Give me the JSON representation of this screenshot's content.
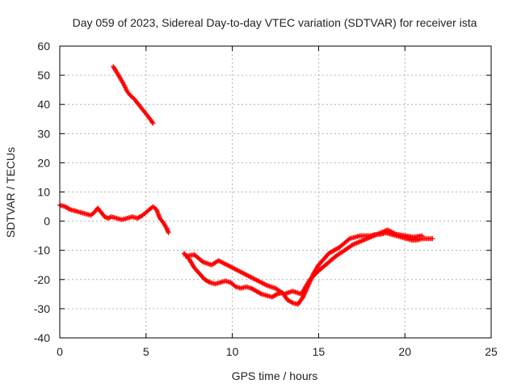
{
  "chart_data": {
    "type": "scatter",
    "title": "Day 059 of 2023, Sidereal Day-to-day VTEC variation (SDTVAR) for receiver ista",
    "xlabel": "GPS time / hours",
    "ylabel": "SDTVAR / TECUs",
    "xlim": [
      0,
      25
    ],
    "ylim": [
      -40,
      60
    ],
    "xticks": [
      0,
      5,
      10,
      15,
      20,
      25
    ],
    "yticks": [
      -40,
      -30,
      -20,
      -10,
      0,
      10,
      20,
      30,
      40,
      50,
      60
    ],
    "grid": true,
    "marker": "+",
    "colors": {
      "series": "#ff0000",
      "grid": "#a0a0a0",
      "axis": "#000000"
    },
    "series": [
      {
        "name": "SDTVAR",
        "segments": [
          {
            "points": [
              [
                0.0,
                5.5
              ],
              [
                0.3,
                5
              ],
              [
                0.6,
                4
              ],
              [
                0.9,
                3.5
              ],
              [
                1.2,
                3
              ],
              [
                1.5,
                2.5
              ],
              [
                1.8,
                2
              ],
              [
                2.0,
                3
              ],
              [
                2.2,
                4.5
              ],
              [
                2.4,
                3
              ],
              [
                2.6,
                1.5
              ],
              [
                2.8,
                1
              ],
              [
                3.0,
                1.5
              ],
              [
                3.3,
                1
              ],
              [
                3.6,
                0.5
              ],
              [
                3.9,
                1
              ],
              [
                4.2,
                1.5
              ],
              [
                4.5,
                1
              ],
              [
                4.8,
                2
              ],
              [
                5.0,
                3
              ],
              [
                5.2,
                4
              ],
              [
                5.4,
                5
              ],
              [
                5.6,
                4
              ],
              [
                5.8,
                1
              ],
              [
                6.0,
                -0.5
              ],
              [
                6.2,
                -2.5
              ],
              [
                6.3,
                -4
              ]
            ]
          },
          {
            "points": [
              [
                3.1,
                53
              ],
              [
                3.3,
                51
              ],
              [
                3.5,
                49
              ],
              [
                3.7,
                47
              ],
              [
                3.9,
                44.5
              ],
              [
                4.1,
                43
              ],
              [
                4.3,
                42
              ],
              [
                4.5,
                40.5
              ],
              [
                4.7,
                39
              ],
              [
                4.9,
                37.5
              ],
              [
                5.1,
                36
              ],
              [
                5.3,
                34.5
              ],
              [
                5.4,
                33.5
              ]
            ]
          },
          {
            "points": [
              [
                7.2,
                -11
              ],
              [
                7.5,
                -13
              ],
              [
                7.8,
                -16
              ],
              [
                8.1,
                -18
              ],
              [
                8.4,
                -20
              ],
              [
                8.7,
                -21
              ],
              [
                9.0,
                -21.5
              ],
              [
                9.3,
                -21
              ],
              [
                9.6,
                -20.5
              ],
              [
                9.9,
                -21
              ],
              [
                10.2,
                -22.5
              ],
              [
                10.5,
                -23
              ],
              [
                10.8,
                -22.5
              ],
              [
                11.1,
                -23
              ],
              [
                11.4,
                -24
              ],
              [
                11.7,
                -25
              ],
              [
                12.0,
                -25.5
              ],
              [
                12.3,
                -26
              ],
              [
                12.6,
                -25
              ],
              [
                12.9,
                -24.5
              ],
              [
                13.2,
                -27
              ],
              [
                13.5,
                -28
              ],
              [
                13.8,
                -28.5
              ],
              [
                14.1,
                -26
              ],
              [
                14.4,
                -22
              ],
              [
                14.7,
                -18
              ],
              [
                15.0,
                -15
              ],
              [
                15.3,
                -13
              ],
              [
                15.6,
                -11
              ],
              [
                15.9,
                -10
              ],
              [
                16.2,
                -9
              ],
              [
                16.5,
                -7.5
              ],
              [
                16.8,
                -6
              ],
              [
                17.1,
                -5.5
              ],
              [
                17.4,
                -5
              ],
              [
                17.7,
                -5
              ],
              [
                18.0,
                -5
              ],
              [
                18.3,
                -4.5
              ],
              [
                18.6,
                -4.5
              ],
              [
                18.9,
                -4
              ],
              [
                19.2,
                -4.5
              ],
              [
                19.5,
                -5
              ],
              [
                19.8,
                -5.5
              ],
              [
                20.1,
                -6
              ],
              [
                20.4,
                -6.5
              ],
              [
                20.7,
                -6.5
              ],
              [
                21.0,
                -6
              ],
              [
                21.3,
                -6
              ],
              [
                21.6,
                -6
              ]
            ]
          },
          {
            "points": [
              [
                7.3,
                -12
              ],
              [
                7.8,
                -11.5
              ],
              [
                8.3,
                -14
              ],
              [
                8.8,
                -15
              ],
              [
                9.2,
                -13.5
              ],
              [
                12.0,
                -22
              ],
              [
                12.5,
                -23
              ],
              [
                13.0,
                -25
              ],
              [
                13.5,
                -24
              ],
              [
                14.0,
                -25
              ],
              [
                14.5,
                -20
              ],
              [
                15.0,
                -17
              ],
              [
                15.5,
                -14.5
              ],
              [
                16.0,
                -12
              ],
              [
                16.5,
                -10
              ],
              [
                17.0,
                -8
              ],
              [
                19.0,
                -3
              ],
              [
                19.5,
                -4.5
              ],
              [
                20.0,
                -5
              ],
              [
                20.5,
                -5.5
              ],
              [
                21.0,
                -5
              ]
            ]
          }
        ]
      }
    ]
  }
}
